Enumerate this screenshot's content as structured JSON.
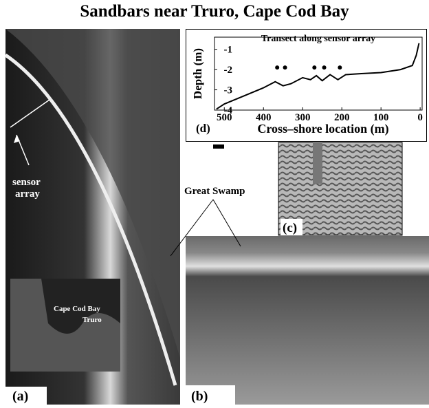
{
  "title": "Sandbars near Truro, Cape Cod Bay",
  "panels": {
    "a": "(a)",
    "b": "(b)",
    "c": "(c)",
    "d": "(d)"
  },
  "labels": {
    "sensor_array": [
      "sensor",
      "array"
    ],
    "great_swamp": "Great Swamp",
    "cape_cod_bay": "Cape Cod Bay",
    "truro": "Truro"
  },
  "chart_data": {
    "type": "line",
    "title": "Transect along sensor array",
    "x_label": "Cross–shore location (m)",
    "y_label": "Depth (m)",
    "x": [
      520,
      500,
      450,
      400,
      370,
      350,
      330,
      300,
      280,
      265,
      250,
      230,
      210,
      190,
      150,
      100,
      50,
      20,
      10,
      3
    ],
    "values": [
      -3.95,
      -3.7,
      -3.3,
      -2.9,
      -2.6,
      -2.8,
      -2.7,
      -2.4,
      -2.5,
      -2.3,
      -2.55,
      -2.25,
      -2.5,
      -2.25,
      -2.2,
      -2.15,
      -2.0,
      -1.8,
      -1.3,
      -0.7
    ],
    "markers": {
      "x": [
        365,
        345,
        270,
        245,
        205
      ],
      "values": [
        -1.9,
        -1.9,
        -1.9,
        -1.9,
        -1.9
      ]
    },
    "color": "#000000",
    "xlim": [
      525,
      -5
    ],
    "ylim": [
      -4,
      -0.4
    ],
    "xticks": [
      500,
      400,
      300,
      200,
      100,
      0
    ],
    "yticks": [
      -4,
      -3,
      -2,
      -1
    ]
  }
}
